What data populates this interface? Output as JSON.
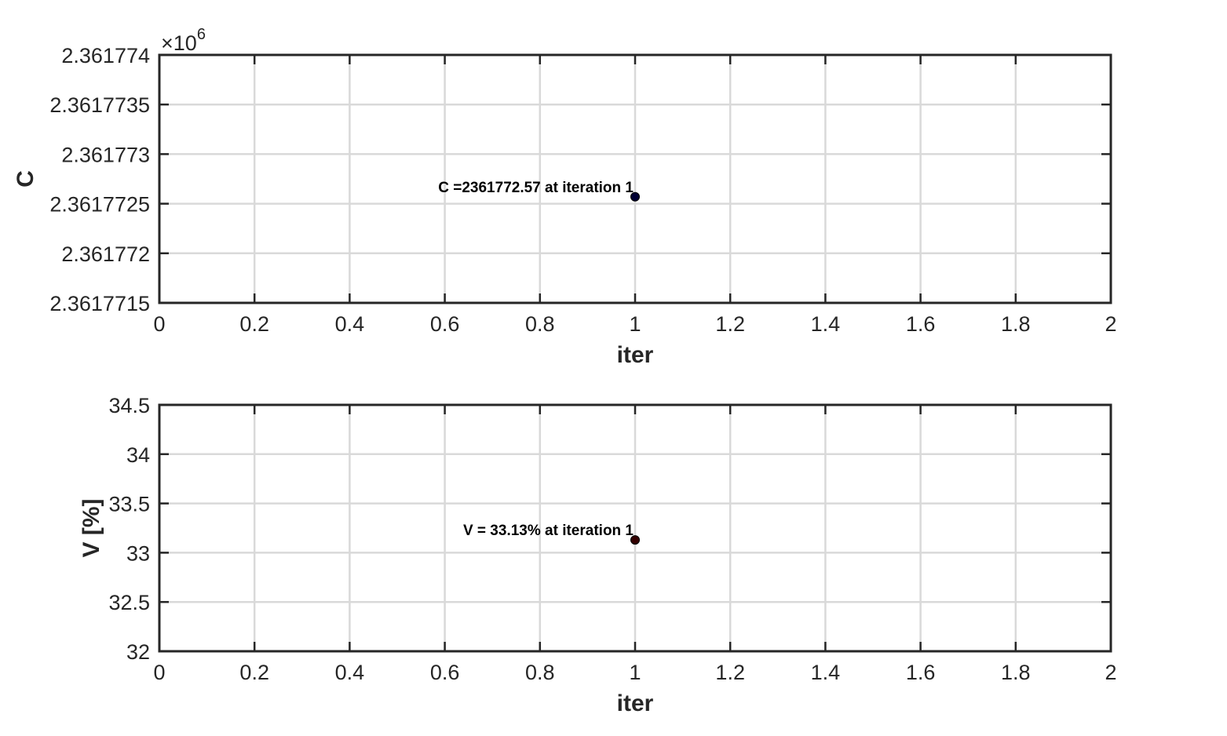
{
  "chart_data": [
    {
      "type": "scatter",
      "id": "top",
      "xlabel": "iter",
      "ylabel": "C",
      "xlim": [
        0,
        2
      ],
      "ylim": [
        2361771.5,
        2361774
      ],
      "x_ticks": [
        0,
        0.2,
        0.4,
        0.6,
        0.8,
        1,
        1.2,
        1.4,
        1.6,
        1.8,
        2
      ],
      "x_tick_labels": [
        "0",
        "0.2",
        "0.4",
        "0.6",
        "0.8",
        "1",
        "1.2",
        "1.4",
        "1.6",
        "1.8",
        "2"
      ],
      "y_ticks": [
        2361771.5,
        2361772,
        2361772.5,
        2361773,
        2361773.5,
        2361774
      ],
      "y_tick_labels": [
        "2.3617715",
        "2.361772",
        "2.3617725",
        "2.361773",
        "2.3617735",
        "2.361774"
      ],
      "y_exponent": {
        "base": "×10",
        "power": "6"
      },
      "grid": true,
      "points": [
        {
          "x": 1,
          "y": 2361772.57,
          "color": "#000033"
        }
      ],
      "annotation": {
        "text": "C =2361772.57 at iteration 1",
        "x": 1,
        "y": 2361772.57
      }
    },
    {
      "type": "scatter",
      "id": "bottom",
      "xlabel": "iter",
      "ylabel": "V [%]",
      "xlim": [
        0,
        2
      ],
      "ylim": [
        32,
        34.5
      ],
      "x_ticks": [
        0,
        0.2,
        0.4,
        0.6,
        0.8,
        1,
        1.2,
        1.4,
        1.6,
        1.8,
        2
      ],
      "x_tick_labels": [
        "0",
        "0.2",
        "0.4",
        "0.6",
        "0.8",
        "1",
        "1.2",
        "1.4",
        "1.6",
        "1.8",
        "2"
      ],
      "y_ticks": [
        32,
        32.5,
        33,
        33.5,
        34,
        34.5
      ],
      "y_tick_labels": [
        "32",
        "32.5",
        "33",
        "33.5",
        "34",
        "34.5"
      ],
      "grid": true,
      "points": [
        {
          "x": 1,
          "y": 33.13,
          "color": "#330000"
        }
      ],
      "annotation": {
        "text": "V = 33.13% at iteration 1",
        "x": 1,
        "y": 33.13
      }
    }
  ]
}
